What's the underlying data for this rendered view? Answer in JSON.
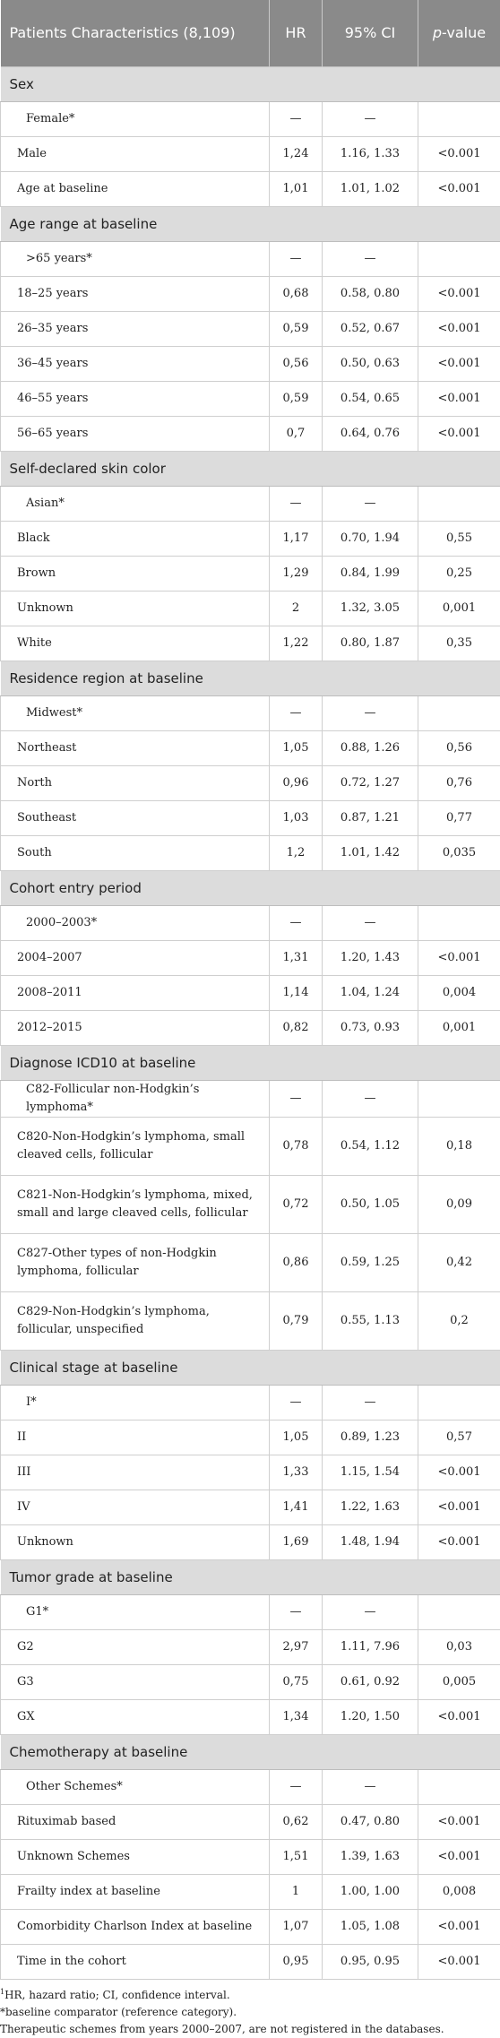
{
  "table": {
    "headers": {
      "characteristics": "Patients Characteristics (8,109)",
      "hr": "HR",
      "ci": "95% CI",
      "pvalue_italic": "p",
      "pvalue_rest": "-value"
    },
    "sections": [
      {
        "title": "Sex",
        "rows": [
          {
            "label": "Female*",
            "hr": "—",
            "ci": "—",
            "p": "",
            "ref": true
          },
          {
            "label": "Male",
            "hr": "1,24",
            "ci": "1.16, 1.33",
            "p": "<0.001"
          },
          {
            "label": "Age at baseline",
            "hr": "1,01",
            "ci": "1.01, 1.02",
            "p": "<0.001"
          }
        ]
      },
      {
        "title": "Age range at baseline",
        "rows": [
          {
            "label": ">65 years*",
            "hr": "—",
            "ci": "—",
            "p": "",
            "ref": true
          },
          {
            "label": "18–25 years",
            "hr": "0,68",
            "ci": "0.58, 0.80",
            "p": "<0.001"
          },
          {
            "label": "26–35 years",
            "hr": "0,59",
            "ci": "0.52, 0.67",
            "p": "<0.001"
          },
          {
            "label": "36–45 years",
            "hr": "0,56",
            "ci": "0.50, 0.63",
            "p": "<0.001"
          },
          {
            "label": "46–55 years",
            "hr": "0,59",
            "ci": "0.54, 0.65",
            "p": "<0.001"
          },
          {
            "label": "56–65 years",
            "hr": "0,7",
            "ci": "0.64, 0.76",
            "p": "<0.001"
          }
        ]
      },
      {
        "title": "Self-declared skin color",
        "rows": [
          {
            "label": "Asian*",
            "hr": "—",
            "ci": "—",
            "p": "",
            "ref": true
          },
          {
            "label": "Black",
            "hr": "1,17",
            "ci": "0.70, 1.94",
            "p": "0,55"
          },
          {
            "label": "Brown",
            "hr": "1,29",
            "ci": "0.84, 1.99",
            "p": "0,25"
          },
          {
            "label": "Unknown",
            "hr": "2",
            "ci": "1.32, 3.05",
            "p": "0,001"
          },
          {
            "label": "White",
            "hr": "1,22",
            "ci": "0.80, 1.87",
            "p": "0,35"
          }
        ]
      },
      {
        "title": "Residence region at baseline",
        "rows": [
          {
            "label": "Midwest*",
            "hr": "—",
            "ci": "—",
            "p": "",
            "ref": true
          },
          {
            "label": "Northeast",
            "hr": "1,05",
            "ci": "0.88, 1.26",
            "p": "0,56"
          },
          {
            "label": "North",
            "hr": "0,96",
            "ci": "0.72, 1.27",
            "p": "0,76"
          },
          {
            "label": "Southeast",
            "hr": "1,03",
            "ci": "0.87, 1.21",
            "p": "0,77"
          },
          {
            "label": "South",
            "hr": "1,2",
            "ci": "1.01, 1.42",
            "p": "0,035"
          }
        ]
      },
      {
        "title": "Cohort entry period",
        "rows": [
          {
            "label": "2000–2003*",
            "hr": "—",
            "ci": "—",
            "p": "",
            "ref": true
          },
          {
            "label": "2004–2007",
            "hr": "1,31",
            "ci": "1.20, 1.43",
            "p": "<0.001"
          },
          {
            "label": "2008–2011",
            "hr": "1,14",
            "ci": "1.04, 1.24",
            "p": "0,004"
          },
          {
            "label": "2012–2015",
            "hr": "0,82",
            "ci": "0.73, 0.93",
            "p": "0,001"
          }
        ]
      },
      {
        "title": "Diagnose ICD10 at baseline",
        "rows": [
          {
            "label": "C82-Follicular non-Hodgkin’s lymphoma*",
            "hr": "—",
            "ci": "—",
            "p": "",
            "ref": true
          },
          {
            "label": "C820-Non-Hodgkin’s lymphoma, small cleaved cells, follicular",
            "hr": "0,78",
            "ci": "0.54, 1.12",
            "p": "0,18",
            "tall": true
          },
          {
            "label": "C821-Non-Hodgkin’s lymphoma, mixed, small and large cleaved cells, follicular",
            "hr": "0,72",
            "ci": "0.50, 1.05",
            "p": "0,09",
            "tall": true
          },
          {
            "label": "C827-Other types of non-Hodgkin lymphoma, follicular",
            "hr": "0,86",
            "ci": "0.59, 1.25",
            "p": "0,42",
            "tall": true
          },
          {
            "label": "C829-Non-Hodgkin’s lymphoma, follicular, unspecified",
            "hr": "0,79",
            "ci": "0.55, 1.13",
            "p": "0,2",
            "tall": true
          }
        ]
      },
      {
        "title": "Clinical stage at baseline",
        "rows": [
          {
            "label": "I*",
            "hr": "—",
            "ci": "—",
            "p": "",
            "ref": true
          },
          {
            "label": "II",
            "hr": "1,05",
            "ci": "0.89, 1.23",
            "p": "0,57"
          },
          {
            "label": "III",
            "hr": "1,33",
            "ci": "1.15, 1.54",
            "p": "<0.001"
          },
          {
            "label": "IV",
            "hr": "1,41",
            "ci": "1.22, 1.63",
            "p": "<0.001"
          },
          {
            "label": "Unknown",
            "hr": "1,69",
            "ci": "1.48, 1.94",
            "p": "<0.001"
          }
        ]
      },
      {
        "title": "Tumor grade at baseline",
        "rows": [
          {
            "label": "G1*",
            "hr": "—",
            "ci": "—",
            "p": "",
            "ref": true
          },
          {
            "label": "G2",
            "hr": "2,97",
            "ci": "1.11, 7.96",
            "p": "0,03"
          },
          {
            "label": "G3",
            "hr": "0,75",
            "ci": "0.61, 0.92",
            "p": "0,005"
          },
          {
            "label": "GX",
            "hr": "1,34",
            "ci": "1.20, 1.50",
            "p": "<0.001"
          }
        ]
      },
      {
        "title": "Chemotherapy at baseline",
        "rows": [
          {
            "label": "Other Schemes*",
            "hr": "—",
            "ci": "—",
            "p": "",
            "ref": true
          },
          {
            "label": "Rituximab based",
            "hr": "0,62",
            "ci": "0.47, 0.80",
            "p": "<0.001"
          },
          {
            "label": "Unknown Schemes",
            "hr": "1,51",
            "ci": "1.39, 1.63",
            "p": "<0.001"
          },
          {
            "label": "Frailty index at baseline",
            "hr": "1",
            "ci": "1.00, 1.00",
            "p": "0,008"
          },
          {
            "label": "Comorbidity Charlson Index at baseline",
            "hr": "1,07",
            "ci": "1.05, 1.08",
            "p": "<0.001"
          },
          {
            "label": "Time in the cohort",
            "hr": "0,95",
            "ci": "0.95, 0.95",
            "p": "<0.001"
          }
        ]
      }
    ]
  },
  "footnotes": {
    "abbrev_marker": "1",
    "abbrev": "HR, hazard ratio; CI, confidence interval.",
    "reference": "*baseline comparator (reference category).",
    "schemes": "Therapeutic schemes from years 2000–2007, are not registered in the databases."
  }
}
